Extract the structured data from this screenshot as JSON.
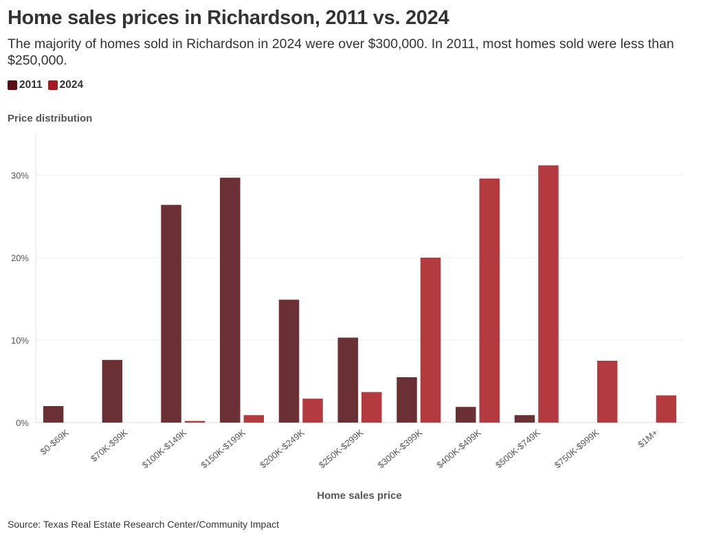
{
  "header": {
    "title": "Home sales prices in Richardson, 2011 vs. 2024",
    "subtitle": "The majority of homes sold in Richardson in 2024 were over $300,000. In 2011, most homes sold were less than $250,000."
  },
  "legend": [
    {
      "label": "2011",
      "color": "#5a0f14"
    },
    {
      "label": "2024",
      "color": "#a51b22"
    }
  ],
  "source": "Source: Texas Real Estate Research Center/Community Impact",
  "colors": {
    "series_2011": "#6b3034",
    "series_2024": "#b33a3f",
    "grid": "#ececec"
  },
  "chart_data": {
    "type": "bar",
    "title": "Home sales prices in Richardson, 2011 vs. 2024",
    "ylabel": "Price distribution",
    "xlabel": "Home sales price",
    "ylim": [
      0,
      35
    ],
    "yticks": [
      0,
      10,
      20,
      30
    ],
    "ytick_labels": [
      "0%",
      "10%",
      "20%",
      "30%"
    ],
    "grid": true,
    "legend_position": "top-left",
    "categories": [
      "$0-$69K",
      "$70K-$99K",
      "$100K-$149K",
      "$150K-$199K",
      "$200K-$249K",
      "$250K-$299K",
      "$300K-$399K",
      "$400K-$499K",
      "$500K-$749K",
      "$750K-$999K",
      "$1M+"
    ],
    "series": [
      {
        "name": "2011",
        "values": [
          2.0,
          7.6,
          26.4,
          29.7,
          14.9,
          10.3,
          5.5,
          1.9,
          0.9,
          0,
          0
        ]
      },
      {
        "name": "2024",
        "values": [
          0,
          0,
          0.2,
          0.9,
          2.9,
          3.7,
          20.0,
          29.6,
          31.2,
          7.5,
          3.3
        ]
      }
    ]
  }
}
